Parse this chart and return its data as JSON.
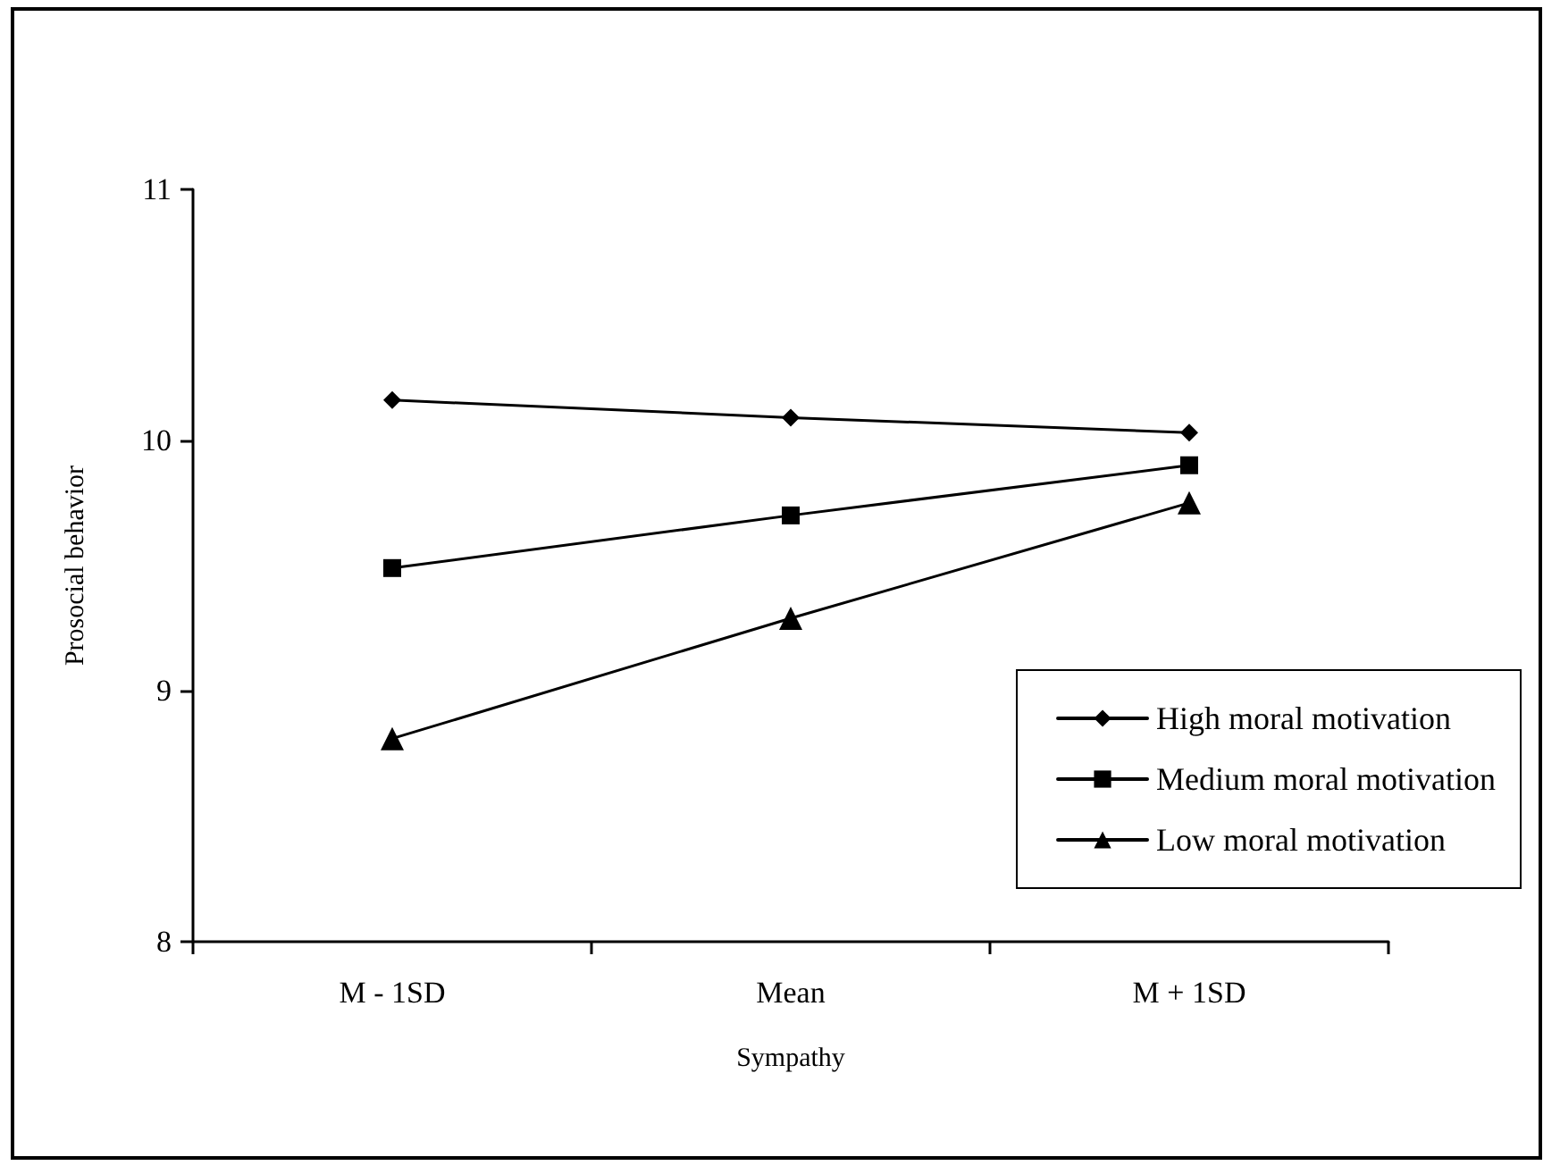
{
  "chart_data": {
    "type": "line",
    "xlabel": "Sympathy",
    "ylabel": "Prosocial behavior",
    "categories": [
      "M - 1SD",
      "Mean",
      "M + 1SD"
    ],
    "series": [
      {
        "name": "High moral motivation",
        "color": "#000000",
        "marker": "diamond",
        "values": [
          10.16,
          10.09,
          10.03
        ]
      },
      {
        "name": "Medium moral motivation",
        "color": "#000000",
        "marker": "square",
        "values": [
          9.49,
          9.7,
          9.9
        ]
      },
      {
        "name": "Low moral motivation",
        "color": "#000000",
        "marker": "triangle",
        "values": [
          8.81,
          9.29,
          9.75
        ]
      }
    ],
    "ylim": [
      8,
      11
    ],
    "yticks": [
      8,
      9,
      10,
      11
    ],
    "grid": false,
    "legend": "bottom right",
    "line_style": "solid"
  }
}
